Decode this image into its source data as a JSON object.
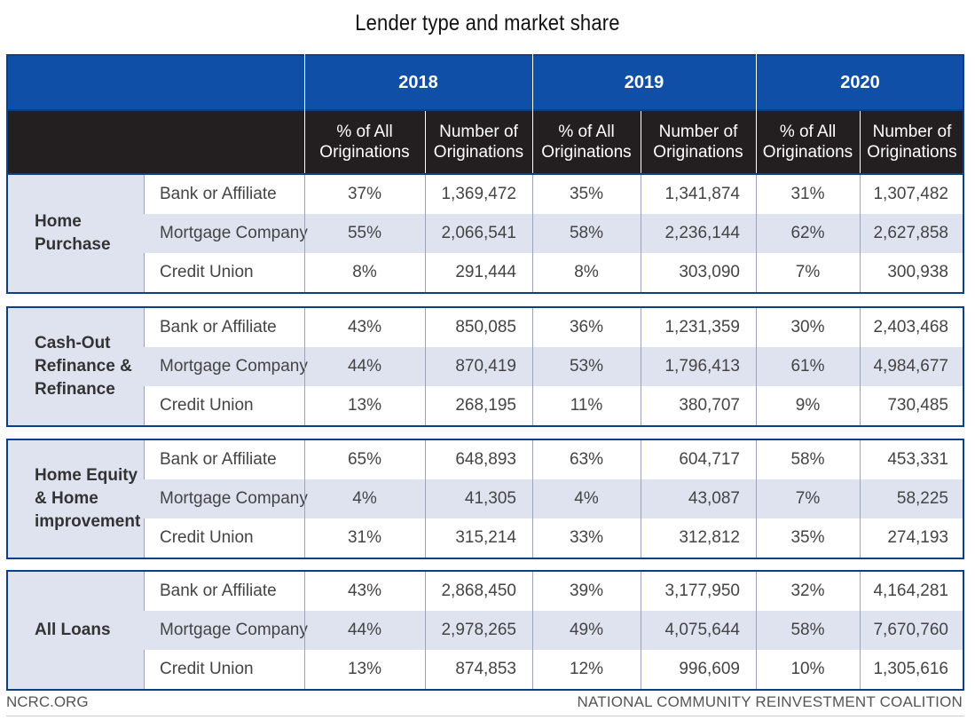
{
  "title": "Lender type and market share",
  "colors": {
    "header_blue": "#0f4fa8",
    "header_dark": "#231f20",
    "row_shade": "#dfe3f0",
    "border": "#0b3f88"
  },
  "chart_data": {
    "type": "table",
    "title": "Lender type and market share",
    "years": [
      "2018",
      "2019",
      "2020"
    ],
    "column_headers": {
      "pct": "% of All Originations",
      "pct_line1": "% of All",
      "pct_line2": "Originations",
      "num_line1": "Number of",
      "num_line2": "Originations"
    },
    "groups": [
      {
        "label_lines": [
          "Home",
          "Purchase"
        ],
        "rows": [
          {
            "lender": "Bank or Affiliate",
            "values": [
              "37%",
              "1,369,472",
              "35%",
              "1,341,874",
              "31%",
              "1,307,482"
            ]
          },
          {
            "lender": "Mortgage Company",
            "values": [
              "55%",
              "2,066,541",
              "58%",
              "2,236,144",
              "62%",
              "2,627,858"
            ]
          },
          {
            "lender": "Credit Union",
            "values": [
              "8%",
              "291,444",
              "8%",
              "303,090",
              "7%",
              "300,938"
            ]
          }
        ]
      },
      {
        "label_lines": [
          "Cash-Out",
          "Refinance &",
          "Refinance"
        ],
        "rows": [
          {
            "lender": "Bank or Affiliate",
            "values": [
              "43%",
              "850,085",
              "36%",
              "1,231,359",
              "30%",
              "2,403,468"
            ]
          },
          {
            "lender": "Mortgage Company",
            "values": [
              "44%",
              "870,419",
              "53%",
              "1,796,413",
              "61%",
              "4,984,677"
            ]
          },
          {
            "lender": "Credit Union",
            "values": [
              "13%",
              "268,195",
              "11%",
              "380,707",
              "9%",
              "730,485"
            ]
          }
        ]
      },
      {
        "label_lines": [
          "Home Equity",
          "& Home",
          "improvement"
        ],
        "rows": [
          {
            "lender": "Bank or Affiliate",
            "values": [
              "65%",
              "648,893",
              "63%",
              "604,717",
              "58%",
              "453,331"
            ]
          },
          {
            "lender": "Mortgage Company",
            "values": [
              "4%",
              "41,305",
              "4%",
              "43,087",
              "7%",
              "58,225"
            ]
          },
          {
            "lender": "Credit Union",
            "values": [
              "31%",
              "315,214",
              "33%",
              "312,812",
              "35%",
              "274,193"
            ]
          }
        ]
      },
      {
        "label_lines": [
          "All Loans"
        ],
        "rows": [
          {
            "lender": "Bank or Affiliate",
            "values": [
              "43%",
              "2,868,450",
              "39%",
              "3,177,950",
              "32%",
              "4,164,281"
            ]
          },
          {
            "lender": "Mortgage Company",
            "values": [
              "44%",
              "2,978,265",
              "49%",
              "4,075,644",
              "58%",
              "7,670,760"
            ]
          },
          {
            "lender": "Credit Union",
            "values": [
              "13%",
              "874,853",
              "12%",
              "996,609",
              "10%",
              "1,305,616"
            ]
          }
        ]
      }
    ]
  },
  "footer": {
    "left": "NCRC.ORG",
    "right": "NATIONAL COMMUNITY REINVESTMENT COALITION"
  }
}
